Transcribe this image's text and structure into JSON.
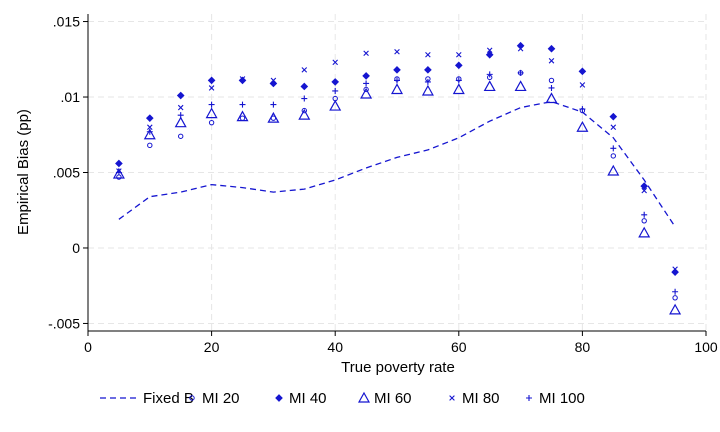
{
  "chart_data": {
    "type": "scatter",
    "xlabel": "True poverty rate",
    "ylabel": "Empirical Bias (pp)",
    "xlim": [
      0,
      100
    ],
    "ylim": [
      -0.0055,
      0.0155
    ],
    "xticks": [
      0,
      20,
      40,
      60,
      80,
      100
    ],
    "xtick_labels": [
      "0",
      "20",
      "40",
      "60",
      "80",
      "100"
    ],
    "yticks": [
      -0.005,
      0,
      0.005,
      0.01,
      0.015
    ],
    "ytick_labels": [
      "-.005",
      "0",
      ".005",
      ".01",
      ".015"
    ],
    "grid": true,
    "legend_position": "bottom",
    "color": "#1515d0",
    "x": [
      5,
      10,
      15,
      20,
      25,
      30,
      35,
      40,
      45,
      50,
      55,
      60,
      65,
      70,
      75,
      80,
      85,
      90,
      95
    ],
    "series": [
      {
        "name": "Fixed B",
        "marker": "dash-line",
        "values": [
          0.0019,
          0.0034,
          0.0037,
          0.0042,
          0.004,
          0.0037,
          0.0039,
          0.0045,
          0.0053,
          0.006,
          0.0065,
          0.0073,
          0.0084,
          0.0093,
          0.0097,
          0.009,
          0.0073,
          0.0045,
          0.0014
        ]
      },
      {
        "name": "MI 20",
        "marker": "circle",
        "values": [
          0.0047,
          0.0068,
          0.0074,
          0.0083,
          0.0086,
          0.0086,
          0.0091,
          0.0099,
          0.0105,
          0.0112,
          0.0112,
          0.0112,
          0.0113,
          0.0116,
          0.0111,
          0.0091,
          0.0061,
          0.0018,
          -0.0033
        ]
      },
      {
        "name": "MI 40",
        "marker": "diamond",
        "values": [
          0.0056,
          0.0086,
          0.0101,
          0.0111,
          0.0111,
          0.0109,
          0.0107,
          0.011,
          0.0114,
          0.0118,
          0.0118,
          0.0121,
          0.0128,
          0.0134,
          0.0132,
          0.0117,
          0.0087,
          0.0041,
          -0.0016
        ]
      },
      {
        "name": "MI 60",
        "marker": "triangle",
        "values": [
          0.0049,
          0.0075,
          0.0083,
          0.0089,
          0.0087,
          0.0086,
          0.0088,
          0.0094,
          0.0102,
          0.0105,
          0.0104,
          0.0105,
          0.0107,
          0.0107,
          0.0099,
          0.008,
          0.0051,
          0.001,
          -0.0041
        ]
      },
      {
        "name": "MI 80",
        "marker": "x",
        "values": [
          0.0051,
          0.008,
          0.0093,
          0.0106,
          0.0112,
          0.0111,
          0.0118,
          0.0123,
          0.0129,
          0.013,
          0.0128,
          0.0128,
          0.0131,
          0.0132,
          0.0124,
          0.0108,
          0.008,
          0.0038,
          -0.0014
        ]
      },
      {
        "name": "MI 100",
        "marker": "plus",
        "values": [
          0.005,
          0.0077,
          0.0088,
          0.0095,
          0.0095,
          0.0095,
          0.0099,
          0.0104,
          0.0109,
          0.0111,
          0.011,
          0.0111,
          0.0115,
          0.0116,
          0.0106,
          0.0092,
          0.0066,
          0.0022,
          -0.0029
        ]
      }
    ]
  }
}
